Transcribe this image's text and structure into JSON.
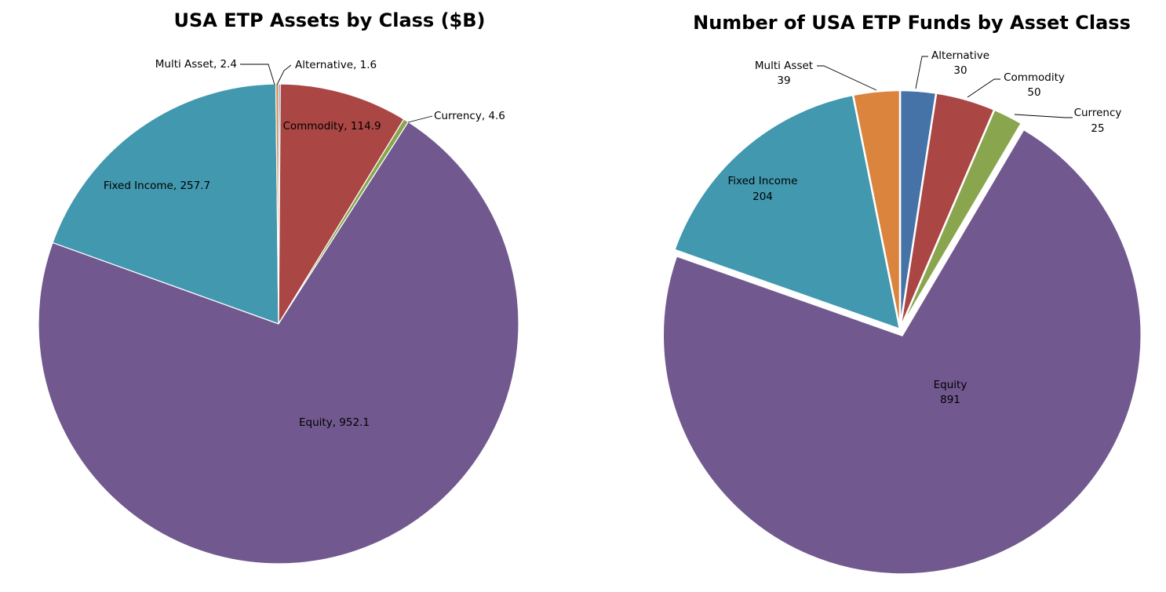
{
  "chart_data": [
    {
      "type": "pie",
      "title": "USA ETP Assets by Class ($B)",
      "start_angle_deg": 0,
      "direction": "clockwise",
      "label_format": "name-comma-value",
      "slices": [
        {
          "name": "Alternative",
          "value": 1.6,
          "color": "#4572A7"
        },
        {
          "name": "Commodity",
          "value": 114.9,
          "color": "#AA4643"
        },
        {
          "name": "Currency",
          "value": 4.6,
          "color": "#89A54E"
        },
        {
          "name": "Equity",
          "value": 952.1,
          "color": "#71588F"
        },
        {
          "name": "Fixed Income",
          "value": 257.7,
          "color": "#4198AF"
        },
        {
          "name": "Multi Asset",
          "value": 2.4,
          "color": "#DB843D"
        }
      ]
    },
    {
      "type": "pie",
      "title": "Number of USA ETP Funds by Asset Class",
      "start_angle_deg": 0,
      "direction": "clockwise",
      "label_format": "name-newline-value",
      "exploded_slice": "Equity",
      "slices": [
        {
          "name": "Alternative",
          "value": 30,
          "color": "#4572A7"
        },
        {
          "name": "Commodity",
          "value": 50,
          "color": "#AA4643"
        },
        {
          "name": "Currency",
          "value": 25,
          "color": "#89A54E"
        },
        {
          "name": "Equity",
          "value": 891,
          "color": "#71588F"
        },
        {
          "name": "Fixed Income",
          "value": 204,
          "color": "#4198AF"
        },
        {
          "name": "Multi Asset",
          "value": 39,
          "color": "#DB843D"
        }
      ]
    }
  ]
}
